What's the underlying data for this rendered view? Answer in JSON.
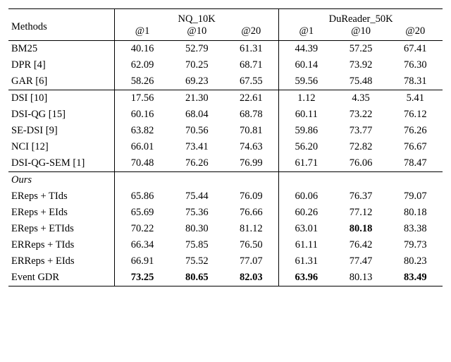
{
  "header": {
    "methods": "Methods",
    "group1": "NQ_10K",
    "group2": "DuReader_50K",
    "sub": [
      "@1",
      "@10",
      "@20",
      "@1",
      "@10",
      "@20"
    ]
  },
  "groups": [
    {
      "rows": [
        {
          "label": "BM25",
          "v": [
            "40.16",
            "52.79",
            "61.31",
            "44.39",
            "57.25",
            "67.41"
          ]
        },
        {
          "label": "DPR [4]",
          "v": [
            "62.09",
            "70.25",
            "68.71",
            "60.14",
            "73.92",
            "76.30"
          ]
        },
        {
          "label": "GAR [6]",
          "v": [
            "58.26",
            "69.23",
            "67.55",
            "59.56",
            "75.48",
            "78.31"
          ]
        }
      ]
    },
    {
      "rows": [
        {
          "label": "DSI [10]",
          "v": [
            "17.56",
            "21.30",
            "22.61",
            "1.12",
            "4.35",
            "5.41"
          ]
        },
        {
          "label": "DSI-QG [15]",
          "v": [
            "60.16",
            "68.04",
            "68.78",
            "60.11",
            "73.22",
            "76.12"
          ]
        },
        {
          "label": "SE-DSI [9]",
          "v": [
            "63.82",
            "70.56",
            "70.81",
            "59.86",
            "73.77",
            "76.26"
          ]
        },
        {
          "label": "NCI [12]",
          "v": [
            "66.01",
            "73.41",
            "74.63",
            "56.20",
            "72.82",
            "76.67"
          ]
        },
        {
          "label": "DSI-QG-SEM [1]",
          "v": [
            "70.48",
            "76.26",
            "76.99",
            "61.71",
            "76.06",
            "78.47"
          ]
        }
      ]
    },
    {
      "heading": "Ours",
      "rows": [
        {
          "label": "EReps + TIds",
          "v": [
            "65.86",
            "75.44",
            "76.09",
            "60.06",
            "76.37",
            "79.07"
          ]
        },
        {
          "label": "EReps + EIds",
          "v": [
            "65.69",
            "75.36",
            "76.66",
            "60.26",
            "77.12",
            "80.18"
          ]
        },
        {
          "label": "EReps + ETIds",
          "v": [
            "70.22",
            "80.30",
            "81.12",
            "63.01",
            "80.18",
            "83.38"
          ],
          "bold": [
            false,
            false,
            false,
            false,
            true,
            false
          ]
        },
        {
          "label": "ERReps + TIds",
          "v": [
            "66.34",
            "75.85",
            "76.50",
            "61.11",
            "76.42",
            "79.73"
          ]
        },
        {
          "label": "ERReps + EIds",
          "v": [
            "66.91",
            "75.52",
            "77.07",
            "61.31",
            "77.47",
            "80.23"
          ]
        },
        {
          "label": "Event GDR",
          "v": [
            "73.25",
            "80.65",
            "82.03",
            "63.96",
            "80.13",
            "83.49"
          ],
          "bold": [
            true,
            true,
            true,
            true,
            false,
            true
          ]
        }
      ]
    }
  ]
}
